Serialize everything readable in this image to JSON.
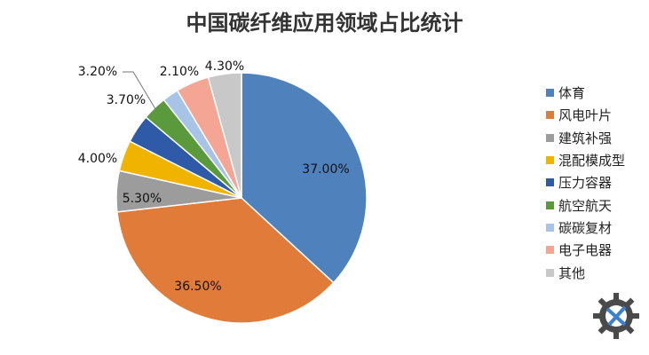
{
  "chart_data": {
    "type": "pie",
    "title": "中国碳纤维应用领域占比统计",
    "legend_position": "right",
    "slices": [
      {
        "name": "体育",
        "value": 37.0,
        "label": "37.00%",
        "color": "#4f81bd"
      },
      {
        "name": "风电叶片",
        "value": 36.5,
        "label": "36.50%",
        "color": "#e07b39"
      },
      {
        "name": "建筑补强",
        "value": 5.3,
        "label": "5.30%",
        "color": "#9c9c9c"
      },
      {
        "name": "混配模成型",
        "value": 4.0,
        "label": "4.00%",
        "color": "#f0b400"
      },
      {
        "name": "压力容器",
        "value": 3.7,
        "label": "3.70%",
        "color": "#2e5aa8"
      },
      {
        "name": "航空航天",
        "value": 3.2,
        "label": "3.20%",
        "color": "#5a9a3c"
      },
      {
        "name": "碳碳复材",
        "value": 2.1,
        "label": "2.10%",
        "color": "#a7c3e6"
      },
      {
        "name": "电子电器",
        "value": 4.3,
        "label": "4.30%",
        "color": "#f4a593"
      },
      {
        "name": "其他",
        "value": 4.3,
        "label": "",
        "color": "#c8c8c8"
      }
    ]
  },
  "watermark_icon": "gear-logo-icon"
}
